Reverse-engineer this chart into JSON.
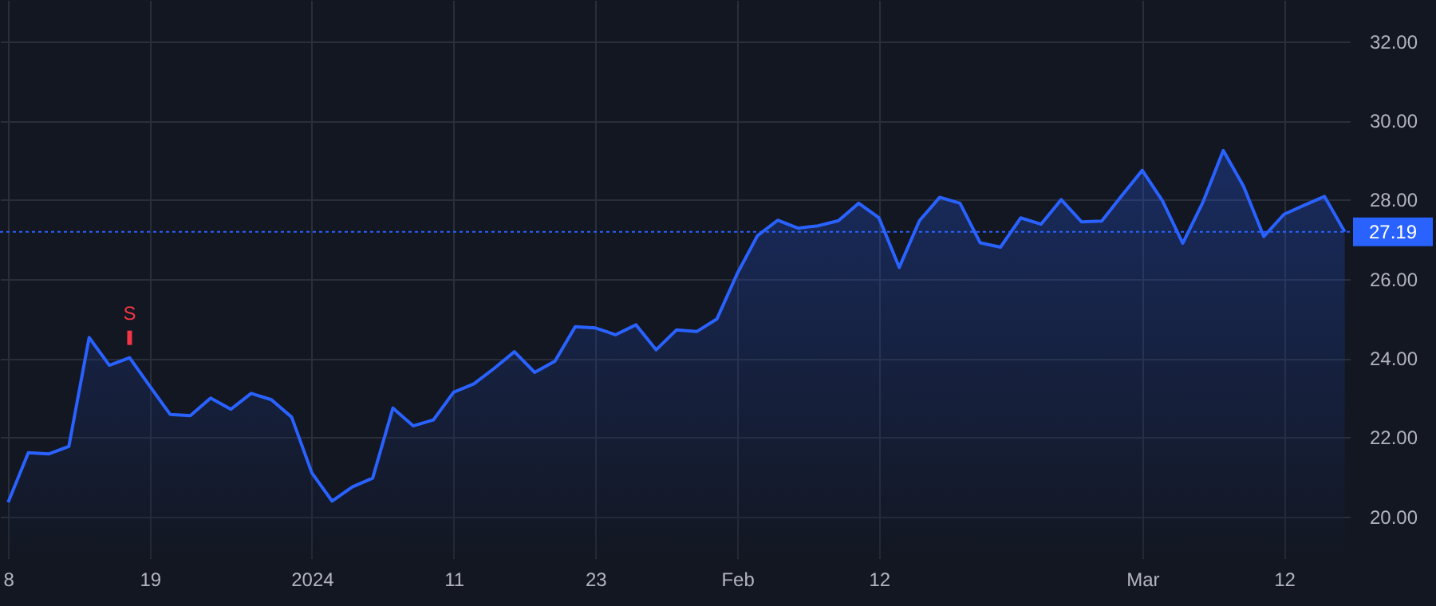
{
  "chart_data": {
    "type": "area",
    "categories": [
      "8",
      null,
      null,
      null,
      null,
      null,
      null,
      "19",
      null,
      null,
      null,
      null,
      null,
      null,
      null,
      "2024",
      null,
      null,
      null,
      null,
      null,
      null,
      "11",
      null,
      null,
      null,
      null,
      null,
      null,
      "23",
      null,
      null,
      null,
      null,
      null,
      null,
      "Feb",
      null,
      null,
      null,
      null,
      null,
      null,
      "12",
      null,
      null,
      null,
      null,
      null,
      null,
      null,
      null,
      null,
      null,
      null,
      null,
      "Mar",
      null,
      null,
      null,
      null,
      null,
      null,
      "12",
      null,
      null,
      null
    ],
    "series": [
      {
        "color": "#2962ff",
        "values": [
          20.36,
          21.61,
          21.58,
          21.77,
          24.52,
          23.82,
          24.01,
          23.29,
          22.58,
          22.55,
          22.99,
          22.71,
          23.11,
          22.95,
          22.51,
          21.1,
          20.39,
          20.75,
          20.97,
          22.74,
          22.29,
          22.44,
          23.14,
          23.35,
          23.74,
          24.16,
          23.64,
          23.92,
          24.79,
          24.76,
          24.59,
          24.84,
          24.21,
          24.71,
          24.67,
          24.99,
          26.13,
          27.09,
          27.48,
          27.28,
          27.34,
          27.47,
          27.91,
          27.54,
          26.29,
          27.47,
          28.06,
          27.91,
          26.91,
          26.8,
          27.54,
          27.38,
          28.0,
          27.44,
          27.46,
          28.11,
          28.74,
          27.97,
          26.9,
          27.94,
          29.24,
          28.34,
          27.07,
          27.63,
          27.86,
          28.08,
          27.19
        ]
      }
    ],
    "ylim": [
      18.95,
      33.04
    ],
    "yticks": [
      {
        "value": 20,
        "label": "20.00"
      },
      {
        "value": 22,
        "label": "22.00"
      },
      {
        "value": 24,
        "label": "24.00"
      },
      {
        "value": 26,
        "label": "26.00"
      },
      {
        "value": 28,
        "label": "28.00"
      },
      {
        "value": 30,
        "label": "30.00"
      },
      {
        "value": 32,
        "label": "32.00"
      }
    ],
    "ref_lines": [
      {
        "axis": "y",
        "value": 27.19,
        "label": "27.19",
        "color": "#2962ff",
        "line_style": "dotted"
      }
    ],
    "annotations": [
      {
        "text": "S",
        "y": 24.01
      }
    ],
    "grid": true
  }
}
